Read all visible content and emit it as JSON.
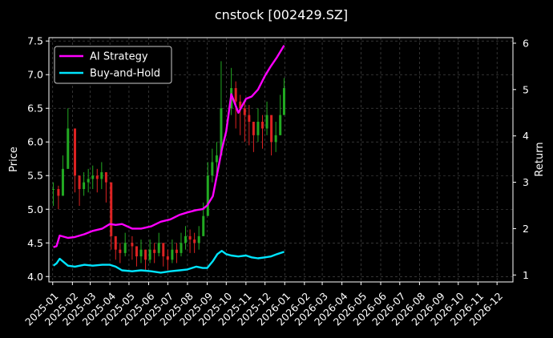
{
  "chart_data": {
    "type": "line",
    "title": "cnstock [002429.SZ]",
    "ylabel": "Price",
    "ylabel_right": "Return",
    "ylim": [
      3.92,
      7.55
    ],
    "ylim_right": [
      0.85,
      6.12
    ],
    "yticks": [
      4.0,
      4.5,
      5.0,
      5.5,
      6.0,
      6.5,
      7.0,
      7.5
    ],
    "yticks_right": [
      1,
      2,
      3,
      4,
      5,
      6
    ],
    "xlim": [
      "2024-12-26",
      "2026-12-26"
    ],
    "xticks": [
      "2025-01",
      "2025-02",
      "2025-03",
      "2025-04",
      "2025-05",
      "2025-06",
      "2025-07",
      "2025-08",
      "2025-09",
      "2025-10",
      "2025-11",
      "2025-12",
      "2026-01",
      "2026-02",
      "2026-03",
      "2026-04",
      "2026-05",
      "2026-06",
      "2026-07",
      "2026-08",
      "2026-09",
      "2026-10",
      "2026-11",
      "2026-12"
    ],
    "grid": true,
    "legend_position": "top-left",
    "colors": {
      "up": "#22aa22",
      "down": "#dd2222",
      "ai": "#ff00ff",
      "bh": "#00e5ff",
      "text": "#ffffff",
      "grid": "#555555"
    },
    "price": {
      "type": "candlestick",
      "x": [
        "2025-01-02",
        "2025-01-10",
        "2025-01-17",
        "2025-01-25",
        "2025-02-05",
        "2025-02-12",
        "2025-02-19",
        "2025-02-26",
        "2025-03-05",
        "2025-03-12",
        "2025-03-19",
        "2025-03-26",
        "2025-04-03",
        "2025-04-10",
        "2025-04-17",
        "2025-04-25",
        "2025-05-06",
        "2025-05-13",
        "2025-05-20",
        "2025-05-27",
        "2025-06-03",
        "2025-06-10",
        "2025-06-17",
        "2025-06-24",
        "2025-07-01",
        "2025-07-08",
        "2025-07-15",
        "2025-07-22",
        "2025-07-29",
        "2025-08-05",
        "2025-08-12",
        "2025-08-19",
        "2025-08-26",
        "2025-09-02",
        "2025-09-09",
        "2025-09-16",
        "2025-09-23",
        "2025-10-09",
        "2025-10-16",
        "2025-10-23",
        "2025-10-30",
        "2025-11-06",
        "2025-11-13",
        "2025-11-20",
        "2025-11-27",
        "2025-12-04",
        "2025-12-11",
        "2025-12-18",
        "2025-12-25",
        "2025-12-31"
      ],
      "close": [
        5.3,
        5.2,
        5.6,
        6.2,
        5.5,
        5.3,
        5.4,
        5.45,
        5.5,
        5.45,
        5.55,
        5.4,
        4.6,
        4.4,
        4.35,
        4.5,
        4.45,
        4.3,
        4.4,
        4.25,
        4.4,
        4.35,
        4.5,
        4.3,
        4.25,
        4.4,
        4.35,
        4.5,
        4.6,
        4.55,
        4.5,
        4.6,
        4.9,
        5.5,
        5.7,
        5.8,
        6.5,
        6.8,
        6.6,
        6.5,
        6.4,
        6.3,
        6.1,
        6.3,
        6.2,
        6.4,
        6.0,
        6.1,
        6.4,
        6.8
      ],
      "high": [
        5.4,
        5.35,
        5.8,
        6.5,
        5.7,
        5.5,
        5.55,
        5.6,
        5.65,
        5.6,
        5.7,
        5.55,
        4.7,
        4.55,
        4.5,
        4.65,
        4.6,
        4.45,
        4.55,
        4.4,
        4.55,
        4.5,
        4.65,
        4.45,
        4.4,
        4.55,
        4.5,
        4.65,
        4.75,
        4.7,
        4.65,
        4.75,
        5.1,
        5.7,
        5.9,
        6.0,
        7.2,
        7.1,
        6.9,
        6.7,
        6.6,
        6.55,
        6.3,
        6.5,
        6.4,
        6.6,
        6.2,
        6.3,
        6.7,
        6.95
      ],
      "low": [
        5.05,
        5.0,
        5.3,
        5.6,
        5.25,
        5.05,
        5.2,
        5.25,
        5.3,
        5.25,
        5.3,
        5.1,
        4.4,
        4.25,
        4.2,
        4.3,
        4.25,
        4.15,
        4.2,
        4.1,
        4.2,
        4.2,
        4.3,
        4.15,
        4.1,
        4.2,
        4.2,
        4.3,
        4.4,
        4.35,
        4.35,
        4.4,
        4.6,
        5.2,
        5.4,
        5.5,
        6.1,
        6.4,
        6.2,
        6.1,
        6.0,
        5.95,
        5.85,
        6.0,
        5.9,
        6.1,
        5.8,
        5.85,
        6.1,
        6.5
      ]
    },
    "series": [
      {
        "name": "AI Strategy",
        "x": [
          "2025-01-02",
          "2025-01-07",
          "2025-01-12",
          "2025-01-25",
          "2025-02-05",
          "2025-02-20",
          "2025-03-05",
          "2025-03-20",
          "2025-04-01",
          "2025-04-10",
          "2025-04-20",
          "2025-05-06",
          "2025-05-20",
          "2025-06-05",
          "2025-06-20",
          "2025-07-05",
          "2025-07-20",
          "2025-08-01",
          "2025-08-15",
          "2025-08-25",
          "2025-09-01",
          "2025-09-10",
          "2025-09-17",
          "2025-09-24",
          "2025-10-01",
          "2025-10-09",
          "2025-10-20",
          "2025-11-01",
          "2025-11-10",
          "2025-11-20",
          "2025-12-01",
          "2025-12-10",
          "2025-12-20",
          "2025-12-31"
        ],
        "values": [
          1.6,
          1.62,
          1.85,
          1.8,
          1.82,
          1.88,
          1.95,
          2.0,
          2.1,
          2.08,
          2.1,
          2.0,
          2.0,
          2.05,
          2.15,
          2.2,
          2.3,
          2.35,
          2.4,
          2.42,
          2.5,
          2.7,
          3.2,
          3.7,
          4.1,
          4.9,
          4.5,
          4.8,
          4.85,
          5.0,
          5.3,
          5.5,
          5.7,
          5.95
        ]
      },
      {
        "name": "Buy-and-Hold",
        "x": [
          "2025-01-02",
          "2025-01-07",
          "2025-01-12",
          "2025-01-25",
          "2025-02-05",
          "2025-02-20",
          "2025-03-05",
          "2025-03-20",
          "2025-04-01",
          "2025-04-10",
          "2025-04-20",
          "2025-05-06",
          "2025-05-20",
          "2025-06-05",
          "2025-06-20",
          "2025-07-05",
          "2025-07-20",
          "2025-08-01",
          "2025-08-15",
          "2025-08-25",
          "2025-09-01",
          "2025-09-10",
          "2025-09-17",
          "2025-09-24",
          "2025-10-01",
          "2025-10-09",
          "2025-10-20",
          "2025-11-01",
          "2025-11-10",
          "2025-11-20",
          "2025-12-01",
          "2025-12-10",
          "2025-12-20",
          "2025-12-31"
        ],
        "values": [
          1.2,
          1.25,
          1.35,
          1.2,
          1.18,
          1.22,
          1.2,
          1.22,
          1.22,
          1.18,
          1.1,
          1.08,
          1.1,
          1.08,
          1.05,
          1.08,
          1.1,
          1.12,
          1.18,
          1.15,
          1.15,
          1.3,
          1.45,
          1.52,
          1.45,
          1.42,
          1.4,
          1.42,
          1.38,
          1.36,
          1.38,
          1.4,
          1.45,
          1.5
        ]
      }
    ]
  }
}
